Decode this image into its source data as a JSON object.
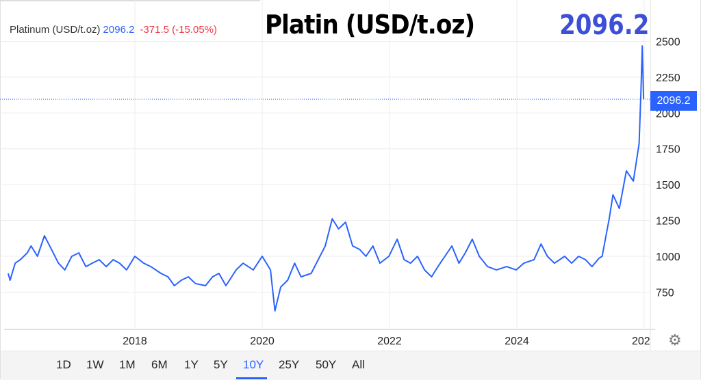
{
  "legend": {
    "name": "Platinum (USD/t.oz)",
    "value": "2096.2",
    "change": "-371.5 (-15.05%)"
  },
  "overlay": {
    "title": "Platin (USD/t.oz)",
    "price": "2096.2"
  },
  "price_tag": "2096.2",
  "range_buttons": [
    "1D",
    "1W",
    "1M",
    "6M",
    "1Y",
    "5Y",
    "10Y",
    "25Y",
    "50Y",
    "All"
  ],
  "active_range": "10Y",
  "colors": {
    "line": "#2962ff",
    "change_negative": "#f23645",
    "overlay_price": "#3d4fd6"
  },
  "settings_icon": "gear-icon",
  "chart_data": {
    "type": "line",
    "title": "Platinum (USD/t.oz)",
    "xlabel": "",
    "ylabel": "",
    "xlim": [
      2016.0,
      2026.1
    ],
    "ylim": [
      520,
      2560
    ],
    "x_ticks": [
      "2018",
      "2020",
      "2022",
      "2024",
      "202"
    ],
    "y_ticks": [
      "2500",
      "2250",
      "2000",
      "1750",
      "1500",
      "1250",
      "1000",
      "750"
    ],
    "grid": true,
    "y_axis_side": "right",
    "last_value": 2096.2,
    "x": [
      2016.01,
      2016.04,
      2016.12,
      2016.2,
      2016.31,
      2016.37,
      2016.47,
      2016.58,
      2016.69,
      2016.8,
      2016.9,
      2017.01,
      2017.12,
      2017.23,
      2017.33,
      2017.44,
      2017.55,
      2017.66,
      2017.76,
      2017.87,
      2018.0,
      2018.14,
      2018.25,
      2018.41,
      2018.52,
      2018.62,
      2018.73,
      2018.84,
      2018.95,
      2019.11,
      2019.22,
      2019.32,
      2019.43,
      2019.59,
      2019.7,
      2019.86,
      2020.0,
      2020.13,
      2020.2,
      2020.29,
      2020.4,
      2020.51,
      2020.61,
      2020.77,
      2020.88,
      2020.99,
      2021.1,
      2021.2,
      2021.31,
      2021.42,
      2021.53,
      2021.63,
      2021.74,
      2021.85,
      2021.99,
      2022.12,
      2022.23,
      2022.33,
      2022.44,
      2022.55,
      2022.66,
      2022.76,
      2022.87,
      2022.98,
      2023.09,
      2023.19,
      2023.3,
      2023.41,
      2023.54,
      2023.68,
      2023.84,
      2023.99,
      2024.11,
      2024.27,
      2024.38,
      2024.48,
      2024.59,
      2024.75,
      2024.86,
      2024.97,
      2025.08,
      2025.18,
      2025.29,
      2025.34,
      2025.4,
      2025.45,
      2025.51,
      2025.61,
      2025.72,
      2025.83,
      2025.88,
      2025.92,
      2025.95,
      2025.97,
      2025.99
    ],
    "values": [
      881,
      833,
      952,
      976,
      1024,
      1072,
      1000,
      1143,
      1048,
      952,
      905,
      1000,
      1024,
      928,
      952,
      976,
      928,
      976,
      952,
      905,
      1000,
      952,
      928,
      881,
      857,
      795,
      833,
      857,
      810,
      795,
      857,
      881,
      795,
      905,
      952,
      905,
      1000,
      905,
      619,
      785,
      833,
      952,
      857,
      881,
      976,
      1072,
      1262,
      1191,
      1238,
      1072,
      1048,
      1000,
      1072,
      952,
      1000,
      1119,
      976,
      952,
      1000,
      905,
      857,
      928,
      1000,
      1072,
      952,
      1024,
      1119,
      1000,
      928,
      905,
      928,
      905,
      952,
      976,
      1086,
      1000,
      952,
      1000,
      952,
      1000,
      976,
      928,
      986,
      1000,
      1143,
      1262,
      1429,
      1334,
      1596,
      1525,
      1668,
      1787,
      2168,
      2468,
      2096
    ]
  }
}
